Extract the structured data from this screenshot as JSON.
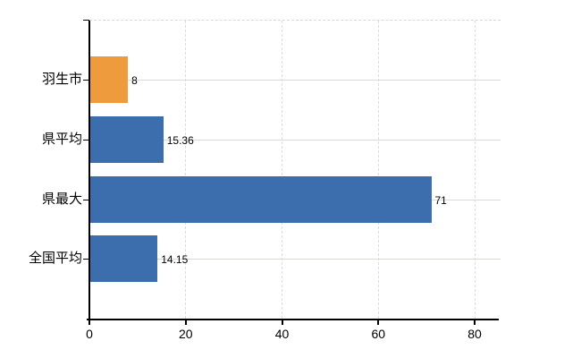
{
  "chart_data": {
    "type": "bar",
    "orientation": "horizontal",
    "title": "",
    "xlabel": "",
    "ylabel": "",
    "categories": [
      "羽生市",
      "県平均",
      "県最大",
      "全国平均"
    ],
    "values": [
      8,
      15.36,
      71,
      14.15
    ],
    "value_labels": [
      "8",
      "15.36",
      "71",
      "14.15"
    ],
    "bar_colors": [
      "#ee9b3d",
      "#3c6ead",
      "#3c6ead",
      "#3c6ead"
    ],
    "x_ticks": [
      "0",
      "20",
      "40",
      "60",
      "80"
    ],
    "x_tick_values": [
      0,
      20,
      40,
      60,
      80
    ],
    "xlim": [
      0,
      85.4
    ],
    "grid": "on",
    "legend": "none"
  },
  "colors": {
    "bar_default": "#3c6ead",
    "bar_highlight": "#ee9b3d",
    "axis": "#000000",
    "grid_horizontal": "#d7dcd4",
    "grid_vertical": "#dcdcdc",
    "background": "#ffffff",
    "text": "#000000"
  }
}
